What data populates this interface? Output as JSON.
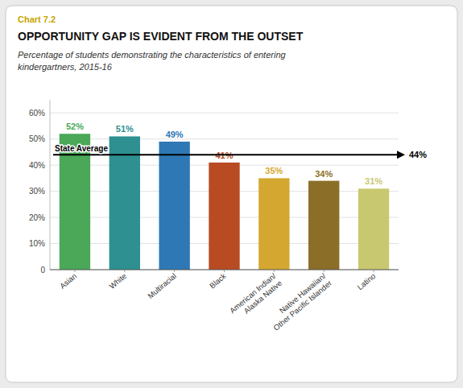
{
  "chart_data": {
    "type": "bar",
    "title": "OPPORTUNITY GAP IS EVIDENT FROM THE OUTSET",
    "subtitle": "Percentage of students demonstrating the characteristics of entering\nkindergartners, 2015-16",
    "annotations": [
      {
        "text": "Chart 7.2",
        "color": "#C8A400"
      }
    ],
    "categories": [
      "Asian",
      "White",
      "Multiracial",
      "Black",
      "American Indian/\nAlaska Native",
      "Native Hawaiian/\nOther Pacific Islander",
      "Latino"
    ],
    "values": [
      52,
      51,
      49,
      41,
      35,
      34,
      31
    ],
    "value_labels": [
      "52%",
      "51%",
      "49%",
      "41%",
      "35%",
      "34%",
      "31%"
    ],
    "colors": [
      "#4aA858",
      "#2E9090",
      "#2E78B5",
      "#B84B22",
      "#D4A830",
      "#8B6E28",
      "#C8C870"
    ],
    "data_labels": true,
    "reference_line": {
      "value": 44,
      "label": "State Average",
      "value_label": "44%"
    },
    "ylim": [
      0,
      65
    ],
    "yticks": [
      0,
      {
        "value": 10,
        "label": "10%"
      },
      {
        "value": 20,
        "label": "20%"
      },
      {
        "value": 30,
        "label": "30%"
      },
      {
        "value": 40,
        "label": "40%"
      },
      {
        "value": 50,
        "label": "50%"
      },
      {
        "value": 60,
        "label": "60%"
      }
    ],
    "grid": true
  }
}
